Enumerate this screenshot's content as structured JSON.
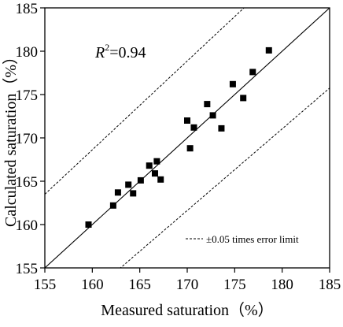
{
  "chart_data": {
    "type": "scatter",
    "xlabel": "Measured saturation（%）",
    "ylabel": "Calculated saturation（%）",
    "xlim": [
      155,
      185
    ],
    "ylim": [
      155,
      185
    ],
    "xticks": [
      "155",
      "160",
      "165",
      "170",
      "175",
      "180",
      "185"
    ],
    "yticks": [
      "155",
      "160",
      "165",
      "170",
      "175",
      "180",
      "185"
    ],
    "grid": false,
    "annotation": {
      "prefix": "R",
      "sup": "2",
      "value": "=0.94"
    },
    "legend": {
      "label": "±0.05 times error limit",
      "placement": "bottom-right"
    },
    "reference_lines": [
      {
        "style": "solid",
        "x": [
          155,
          185
        ],
        "y": [
          155,
          185
        ]
      },
      {
        "style": "dashed",
        "x": [
          155,
          185
        ],
        "y": [
          163.5,
          194.25
        ]
      },
      {
        "style": "dashed",
        "x": [
          155,
          185
        ],
        "y": [
          147.5,
          175.75
        ]
      }
    ],
    "series": [
      {
        "marker": "square",
        "points": [
          {
            "x": 159.6,
            "y": 160.0
          },
          {
            "x": 162.2,
            "y": 162.2
          },
          {
            "x": 162.7,
            "y": 163.7
          },
          {
            "x": 163.8,
            "y": 164.6
          },
          {
            "x": 164.3,
            "y": 163.6
          },
          {
            "x": 165.1,
            "y": 165.1
          },
          {
            "x": 166.0,
            "y": 166.8
          },
          {
            "x": 166.6,
            "y": 165.9
          },
          {
            "x": 166.8,
            "y": 167.3
          },
          {
            "x": 167.2,
            "y": 165.2
          },
          {
            "x": 170.0,
            "y": 172.0
          },
          {
            "x": 170.3,
            "y": 168.8
          },
          {
            "x": 170.7,
            "y": 171.2
          },
          {
            "x": 172.1,
            "y": 173.9
          },
          {
            "x": 172.7,
            "y": 172.6
          },
          {
            "x": 173.6,
            "y": 171.1
          },
          {
            "x": 174.8,
            "y": 176.2
          },
          {
            "x": 175.9,
            "y": 174.6
          },
          {
            "x": 176.9,
            "y": 177.6
          },
          {
            "x": 178.6,
            "y": 180.1
          }
        ]
      }
    ]
  }
}
